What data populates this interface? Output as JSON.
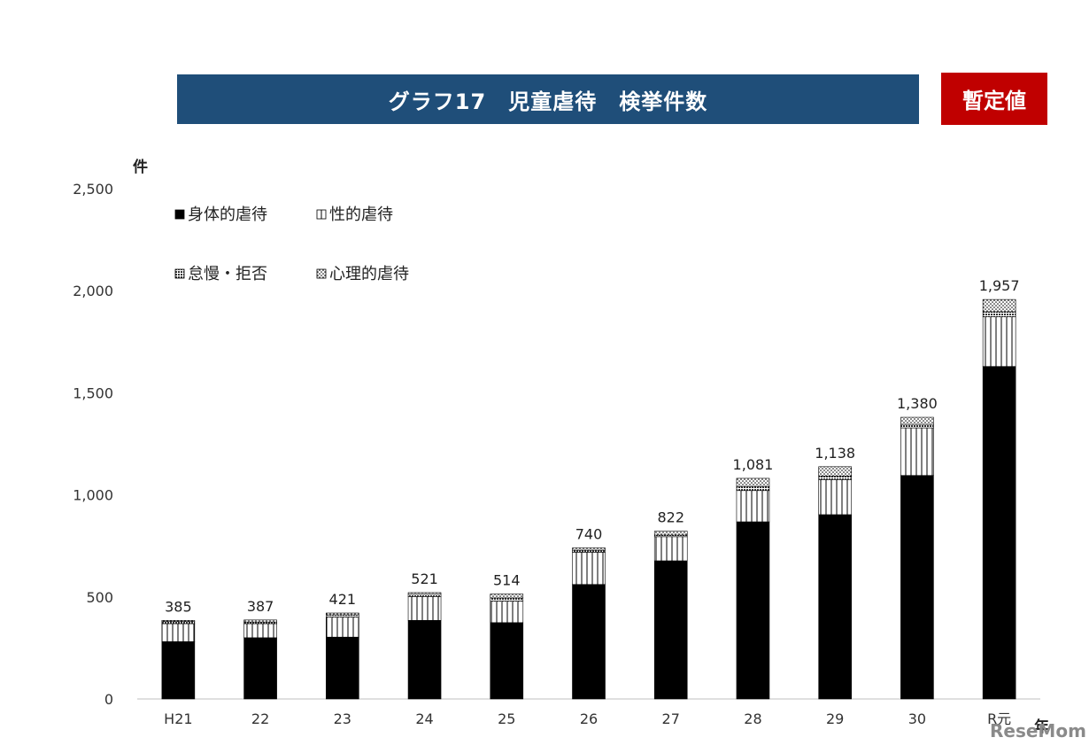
{
  "title": "グラフ17　児童虐待　検挙件数",
  "badge": "暫定値",
  "watermark": "ReseMom",
  "colors": {
    "header_bg": "#1f4e79",
    "badge_bg": "#c00000",
    "physical": "#000000"
  },
  "chart_data": {
    "type": "bar",
    "stacked": true,
    "ylabel": "件",
    "xlabel": "年",
    "ylim": [
      0,
      2500
    ],
    "yticks": [
      0,
      500,
      1000,
      1500,
      2000,
      2500
    ],
    "ytick_labels": [
      "0",
      "500",
      "1,000",
      "1,500",
      "2,000",
      "2,500"
    ],
    "categories": [
      "H21",
      "22",
      "23",
      "24",
      "25",
      "26",
      "27",
      "28",
      "29",
      "30",
      "R元"
    ],
    "totals": [
      385,
      387,
      421,
      521,
      514,
      740,
      822,
      1081,
      1138,
      1380,
      1957
    ],
    "total_labels": [
      "385",
      "387",
      "421",
      "521",
      "514",
      "740",
      "822",
      "1,081",
      "1,138",
      "1,380",
      "1,957"
    ],
    "legend_position": "top-left",
    "series": [
      {
        "name": "身体的虐待",
        "pattern": "solid",
        "values": [
          281,
          300,
          303,
          385,
          374,
          561,
          677,
          868,
          903,
          1095,
          1629
        ]
      },
      {
        "name": "性的虐待",
        "pattern": "vertical",
        "values": [
          88,
          69,
          98,
          117,
          105,
          158,
          118,
          153,
          172,
          233,
          243
        ]
      },
      {
        "name": "怠慢・拒否",
        "pattern": "dense",
        "values": [
          10,
          8,
          11,
          11,
          16,
          10,
          8,
          20,
          17,
          17,
          25
        ]
      },
      {
        "name": "心理的虐待",
        "pattern": "dots",
        "values": [
          6,
          10,
          9,
          8,
          19,
          11,
          19,
          40,
          46,
          35,
          60
        ]
      }
    ]
  }
}
